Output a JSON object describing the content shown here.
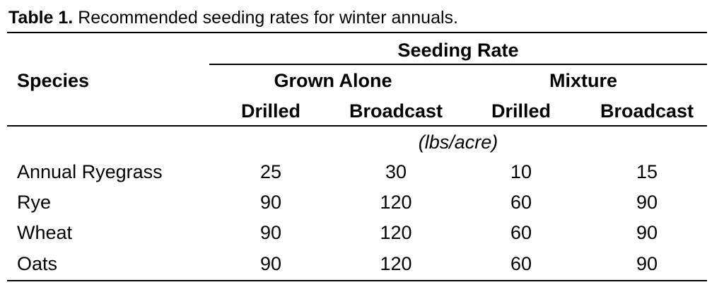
{
  "caption": {
    "label": "Table 1.",
    "text": " Recommended seeding rates for winter annuals."
  },
  "table": {
    "species_header": "Species",
    "group_header": "Seeding Rate",
    "subgroups": [
      "Grown Alone",
      "Mixture"
    ],
    "methods": [
      "Drilled",
      "Broadcast",
      "Drilled",
      "Broadcast"
    ],
    "units": "(lbs/acre)",
    "rows": [
      {
        "species": "Annual Ryegrass",
        "values": [
          "25",
          "30",
          "10",
          "15"
        ]
      },
      {
        "species": "Rye",
        "values": [
          "90",
          "120",
          "60",
          "90"
        ]
      },
      {
        "species": "Wheat",
        "values": [
          "90",
          "120",
          "60",
          "90"
        ]
      },
      {
        "species": "Oats",
        "values": [
          "90",
          "120",
          "60",
          "90"
        ]
      }
    ]
  }
}
